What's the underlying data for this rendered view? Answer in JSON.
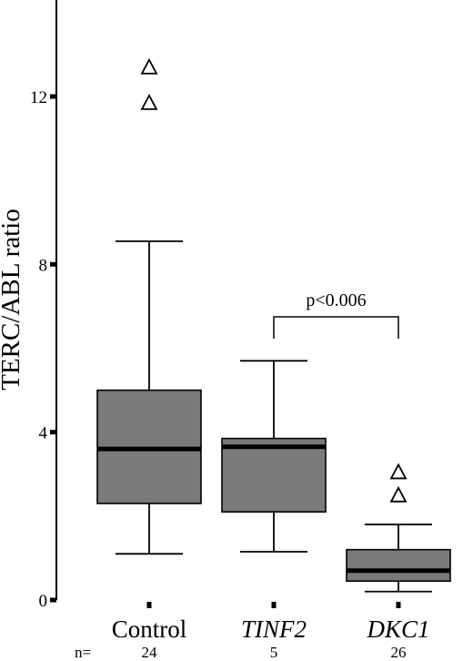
{
  "chart_data": {
    "type": "box",
    "title": "",
    "ylabel": "TERC/ABL ratio",
    "xlabel": "",
    "ylim": [
      0,
      14.3
    ],
    "yticks": [
      0,
      4,
      8,
      12
    ],
    "n_prefix": "n=",
    "categories": [
      {
        "label": "Control",
        "italic": false,
        "n": "24",
        "min": 1.1,
        "q1": 2.3,
        "median": 3.6,
        "q3": 5.0,
        "max": 8.55,
        "outliers": [
          12.7,
          11.85
        ]
      },
      {
        "label": "TINF2",
        "italic": true,
        "n": "5",
        "min": 1.15,
        "q1": 2.1,
        "median": 3.65,
        "q3": 3.85,
        "max": 5.7,
        "outliers": []
      },
      {
        "label": "DKC1",
        "italic": true,
        "n": "26",
        "min": 0.2,
        "q1": 0.45,
        "median": 0.7,
        "q3": 1.2,
        "max": 1.8,
        "outliers": [
          3.05,
          2.5
        ]
      }
    ],
    "annotation": {
      "text": "p<0.006",
      "from": "TINF2",
      "to": "DKC1"
    },
    "colors": {
      "box": "#7a7a7a",
      "line": "#000000",
      "background": "#ffffff"
    }
  }
}
